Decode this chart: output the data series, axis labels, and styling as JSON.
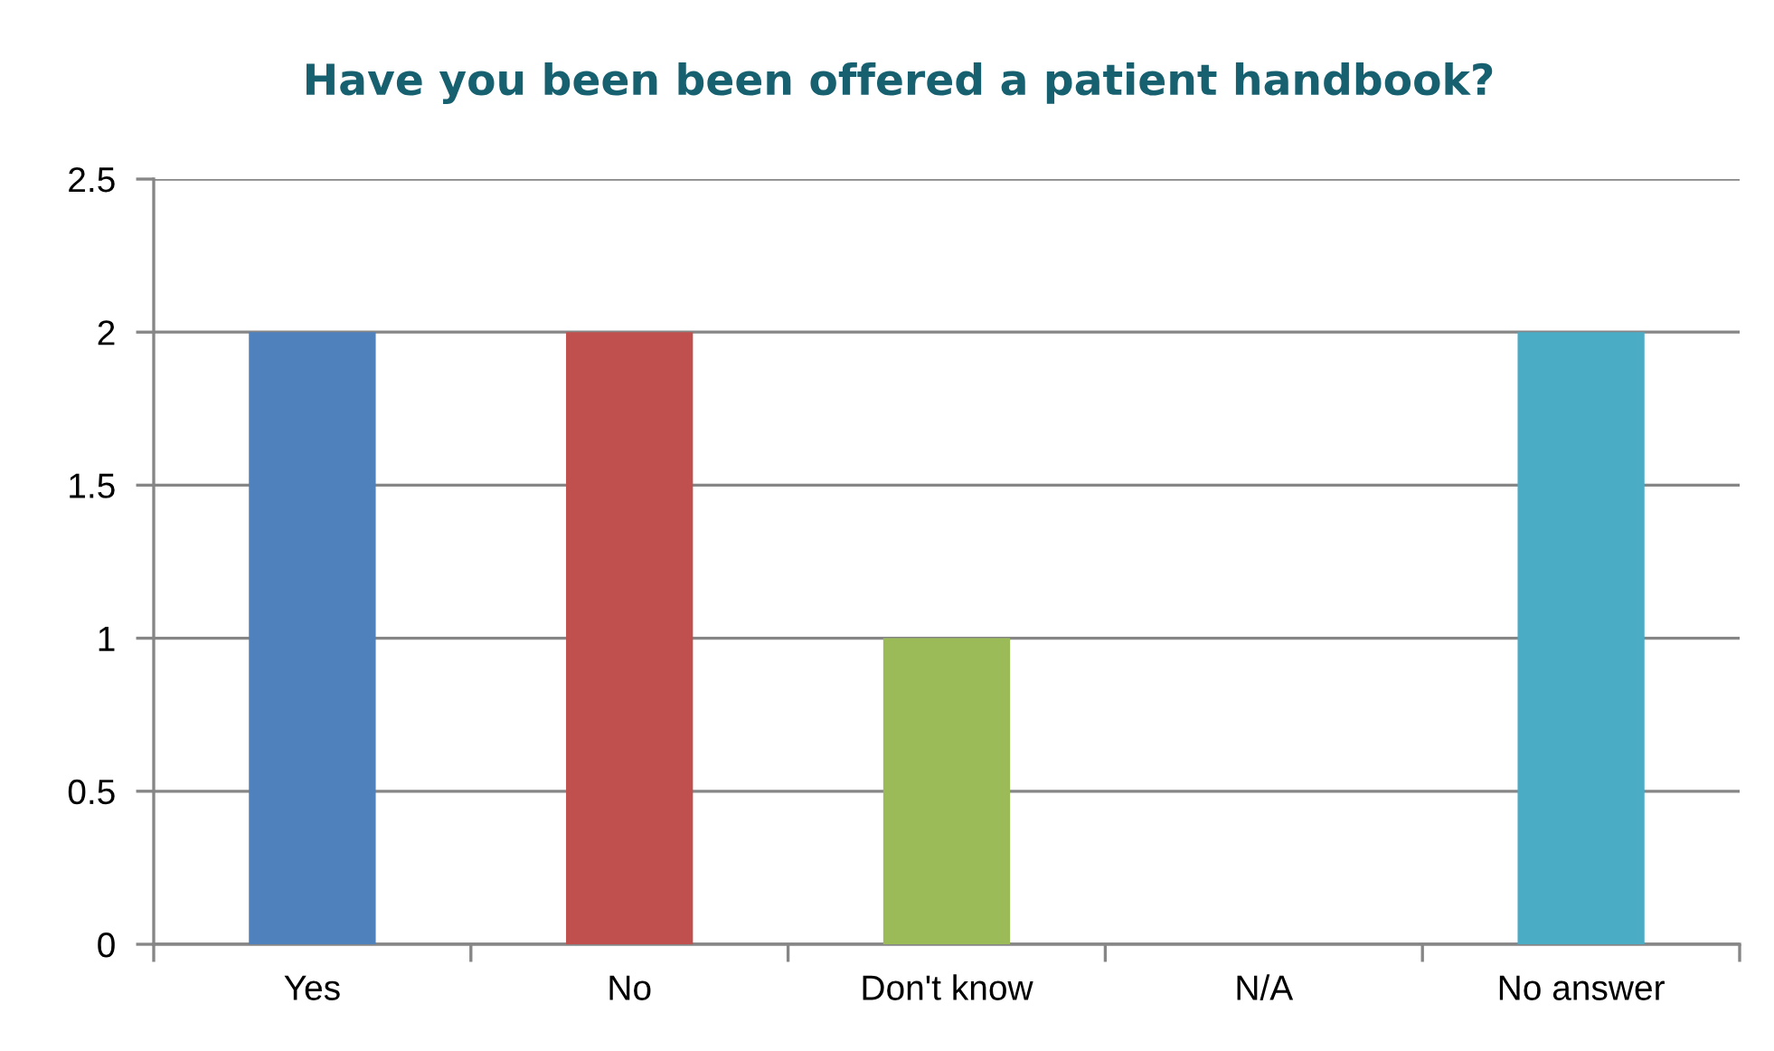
{
  "chart_data": {
    "type": "bar",
    "title": "Have you been been offered a patient handbook?",
    "categories": [
      "Yes",
      "No",
      "Don't know",
      "N/A",
      "No answer"
    ],
    "values": [
      2,
      2,
      1,
      0,
      2
    ],
    "colors": [
      "#4f81bd",
      "#c0504d",
      "#9bbb59",
      null,
      "#4bacc6"
    ],
    "ylim": [
      0,
      2.5
    ],
    "yticks": [
      0,
      0.5,
      1,
      1.5,
      2,
      2.5
    ],
    "grid": "y",
    "legend": false
  }
}
